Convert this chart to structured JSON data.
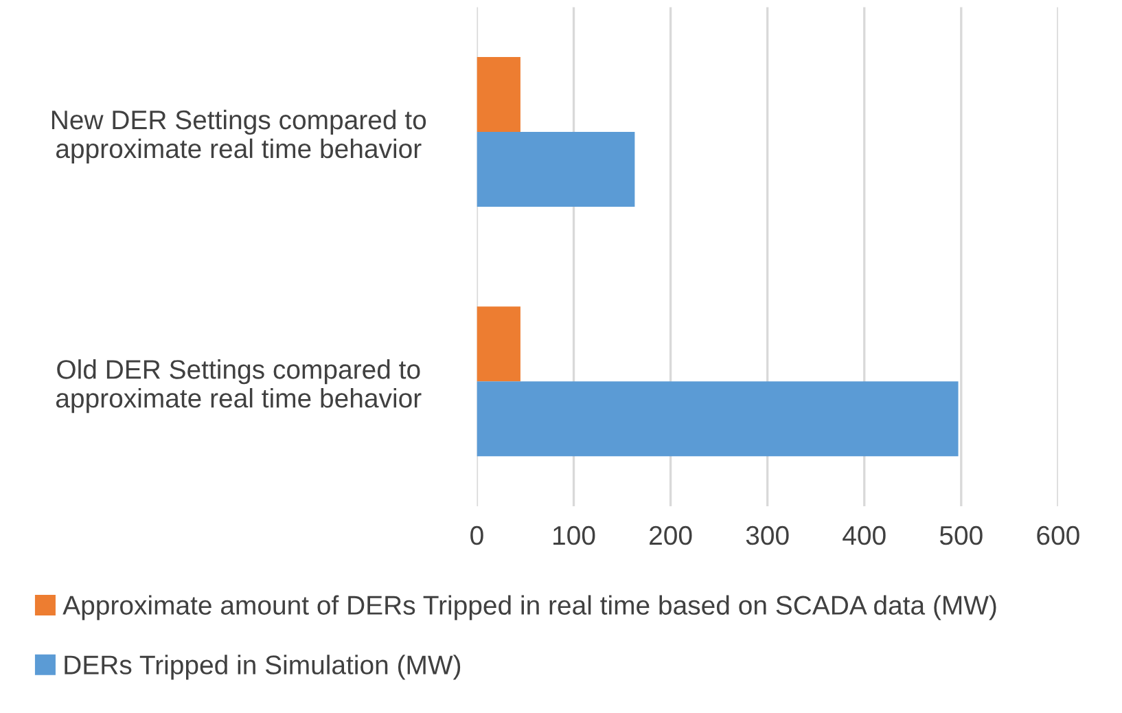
{
  "chart_data": {
    "type": "bar",
    "orientation": "horizontal",
    "categories": [
      "New DER Settings compared to\napproximate real time behavior",
      "Old DER Settings compared to\napproximate real time behavior"
    ],
    "series": [
      {
        "name": "Approximate amount of DERs Tripped in real time based on SCADA data (MW)",
        "color": "#ed7d31",
        "values": [
          45,
          45
        ]
      },
      {
        "name": "DERs Tripped in Simulation (MW)",
        "color": "#5b9bd5",
        "values": [
          163,
          497
        ]
      }
    ],
    "xlim": [
      0,
      600
    ],
    "xticks": [
      0,
      100,
      200,
      300,
      400,
      500,
      600
    ],
    "grid": "x",
    "legend": "bottom"
  }
}
